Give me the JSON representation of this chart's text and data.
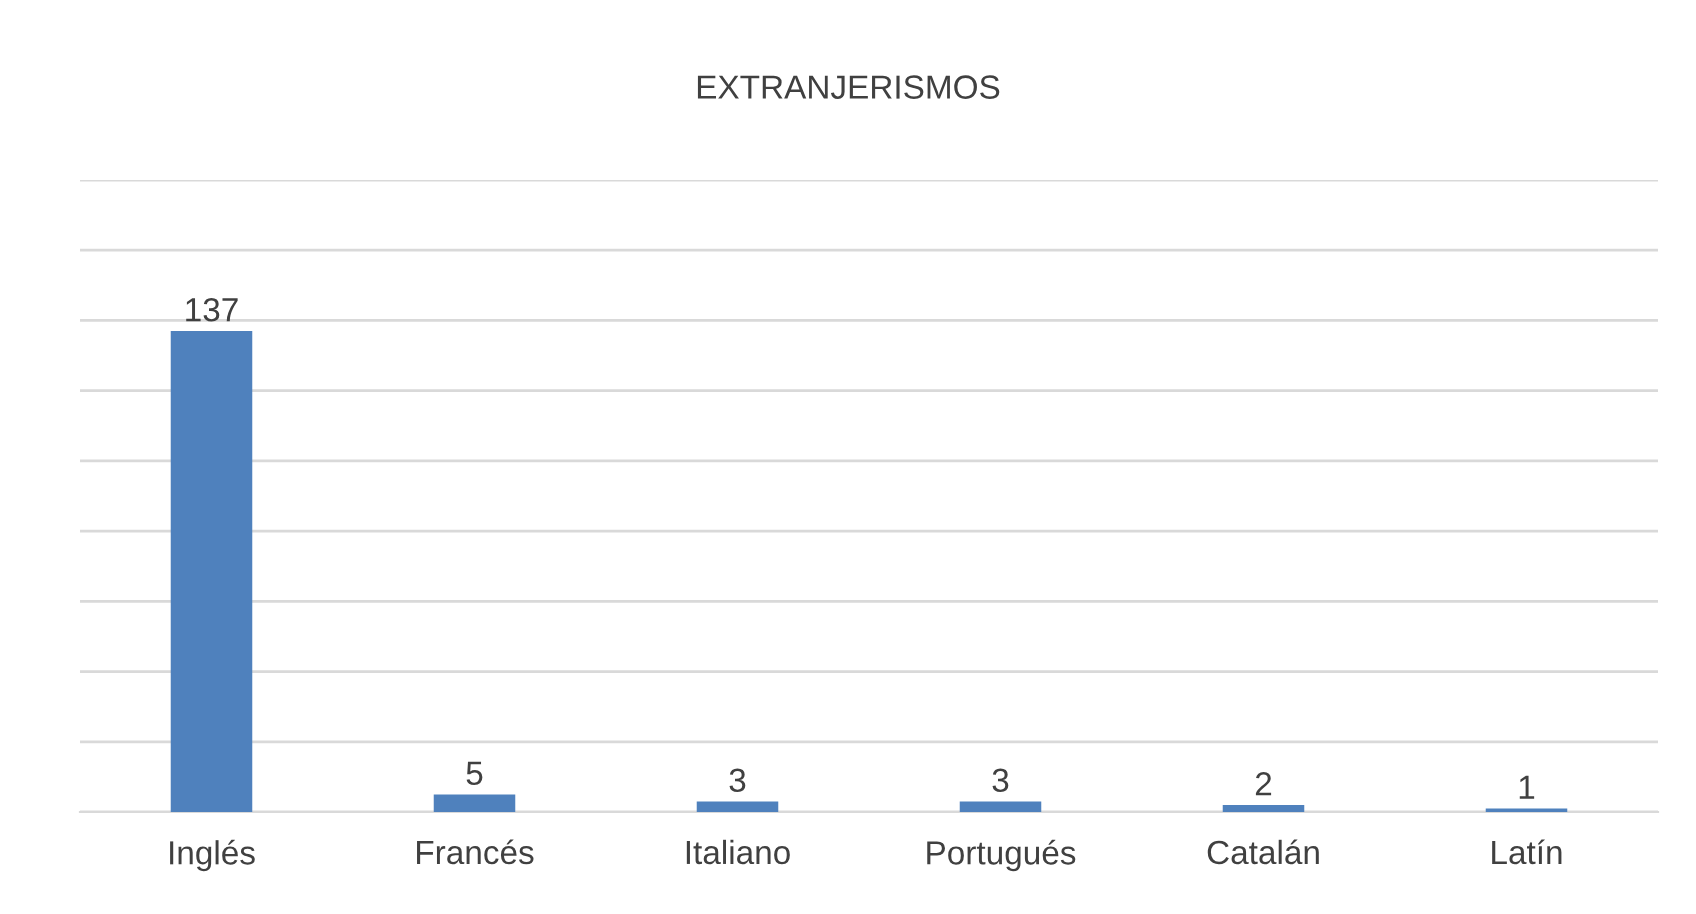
{
  "chart_data": {
    "type": "bar",
    "title": "EXTRANJERISMOS",
    "categories": [
      "Inglés",
      "Francés",
      "Italiano",
      "Portugués",
      "Catalán",
      "Latín"
    ],
    "values": [
      137,
      5,
      3,
      3,
      2,
      1
    ],
    "color": "#4f81bd",
    "ylim": [
      0,
      180
    ],
    "yticks": [
      {
        "value": 0,
        "label": null
      },
      {
        "value": 20,
        "label": null
      },
      {
        "value": 40,
        "label": null
      },
      {
        "value": 60,
        "label": null
      },
      {
        "value": 80,
        "label": null
      },
      {
        "value": 100,
        "label": null
      },
      {
        "value": 120,
        "label": null
      },
      {
        "value": 140,
        "label": null
      },
      {
        "value": 160,
        "label": null
      },
      {
        "value": 180,
        "label": null
      }
    ],
    "grid": "y",
    "tick_labels": "x",
    "data_labels": true,
    "legend": false
  }
}
